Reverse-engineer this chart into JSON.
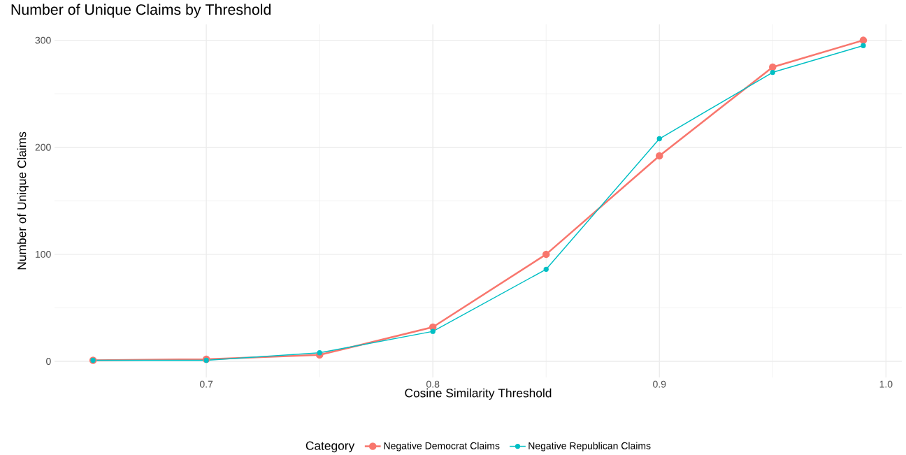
{
  "chart_data": {
    "type": "line",
    "title": "Number of Unique Claims by Threshold",
    "xlabel": "Cosine Similarity Threshold",
    "ylabel": "Number of Unique Claims",
    "legend_title": "Category",
    "x": [
      0.65,
      0.7,
      0.75,
      0.8,
      0.85,
      0.9,
      0.95,
      0.99
    ],
    "series": [
      {
        "name": "Negative Democrat Claims",
        "color": "#f8766d",
        "values": [
          1,
          2,
          6,
          32,
          100,
          192,
          275,
          300
        ]
      },
      {
        "name": "Negative Republican Claims",
        "color": "#00bfc4",
        "values": [
          1,
          1,
          8,
          28,
          86,
          208,
          270,
          295
        ]
      }
    ],
    "xlim": [
      0.633,
      1.007
    ],
    "ylim": [
      -15,
      315
    ],
    "xticks": [
      0.7,
      0.8,
      0.9,
      {
        "value": 1.0,
        "label": "1.0"
      }
    ],
    "yticks": [
      0,
      100,
      200,
      300
    ],
    "grid": true,
    "legend": "bottom",
    "marker": "circle",
    "line_style": "solid"
  }
}
